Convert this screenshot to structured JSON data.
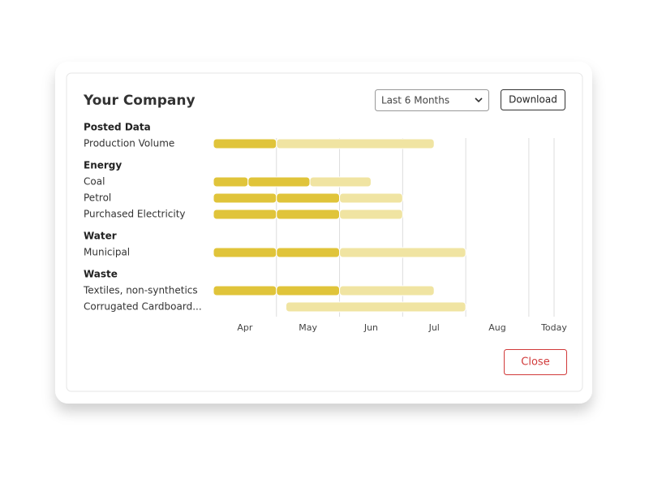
{
  "header": {
    "title": "Your Company",
    "dropdown": "Last 6 Months",
    "download": "Download"
  },
  "chart_data": {
    "type": "gantt",
    "groups": [
      {
        "name": "Posted Data",
        "rows": [
          {
            "label": "Production Volume",
            "segments": [
              {
                "start": 0,
                "end": 1,
                "color": "#e0c43a"
              },
              {
                "start": 1,
                "end": 3.5,
                "color": "#f0e4a2"
              }
            ]
          }
        ]
      },
      {
        "name": "Energy",
        "rows": [
          {
            "label": "Coal",
            "segments": [
              {
                "start": 0,
                "end": 0.55,
                "color": "#e0c43a"
              },
              {
                "start": 0.55,
                "end": 1.53,
                "color": "#e0c43a"
              },
              {
                "start": 1.53,
                "end": 2.5,
                "color": "#f0e4a2"
              }
            ]
          },
          {
            "label": "Petrol",
            "segments": [
              {
                "start": 0,
                "end": 1,
                "color": "#e0c43a"
              },
              {
                "start": 1,
                "end": 2,
                "color": "#e0c43a"
              },
              {
                "start": 2,
                "end": 3,
                "color": "#f0e4a2"
              }
            ]
          },
          {
            "label": "Purchased Electricity",
            "segments": [
              {
                "start": 0,
                "end": 1,
                "color": "#e0c43a"
              },
              {
                "start": 1,
                "end": 2,
                "color": "#e0c43a"
              },
              {
                "start": 2,
                "end": 3,
                "color": "#f0e4a2"
              }
            ]
          }
        ]
      },
      {
        "name": "Water",
        "rows": [
          {
            "label": "Municipal",
            "segments": [
              {
                "start": 0,
                "end": 1,
                "color": "#e0c43a"
              },
              {
                "start": 1,
                "end": 2,
                "color": "#e0c43a"
              },
              {
                "start": 2,
                "end": 4,
                "color": "#f0e4a2"
              }
            ]
          }
        ]
      },
      {
        "name": "Waste",
        "rows": [
          {
            "label": "Textiles, non-synthetics",
            "segments": [
              {
                "start": 0,
                "end": 1,
                "color": "#e0c43a"
              },
              {
                "start": 1,
                "end": 2,
                "color": "#e0c43a"
              },
              {
                "start": 2,
                "end": 3.5,
                "color": "#f0e4a2"
              }
            ]
          },
          {
            "label": "Corrugated Cardboard...",
            "segments": [
              {
                "start": 1.15,
                "end": 4,
                "color": "#f0e4a2"
              }
            ]
          }
        ]
      }
    ],
    "xlim": [
      0,
      5.4
    ],
    "xticks": [
      {
        "value": 0.5,
        "label": "Apr"
      },
      {
        "value": 1.5,
        "label": "May"
      },
      {
        "value": 2.5,
        "label": "Jun"
      },
      {
        "value": 3.5,
        "label": "Jul"
      },
      {
        "value": 4.5,
        "label": "Aug"
      },
      {
        "value": 5.4,
        "label": "Today"
      }
    ],
    "gridlines": [
      1,
      2,
      3,
      4,
      5,
      5.4
    ]
  },
  "footer": {
    "close": "Close"
  }
}
